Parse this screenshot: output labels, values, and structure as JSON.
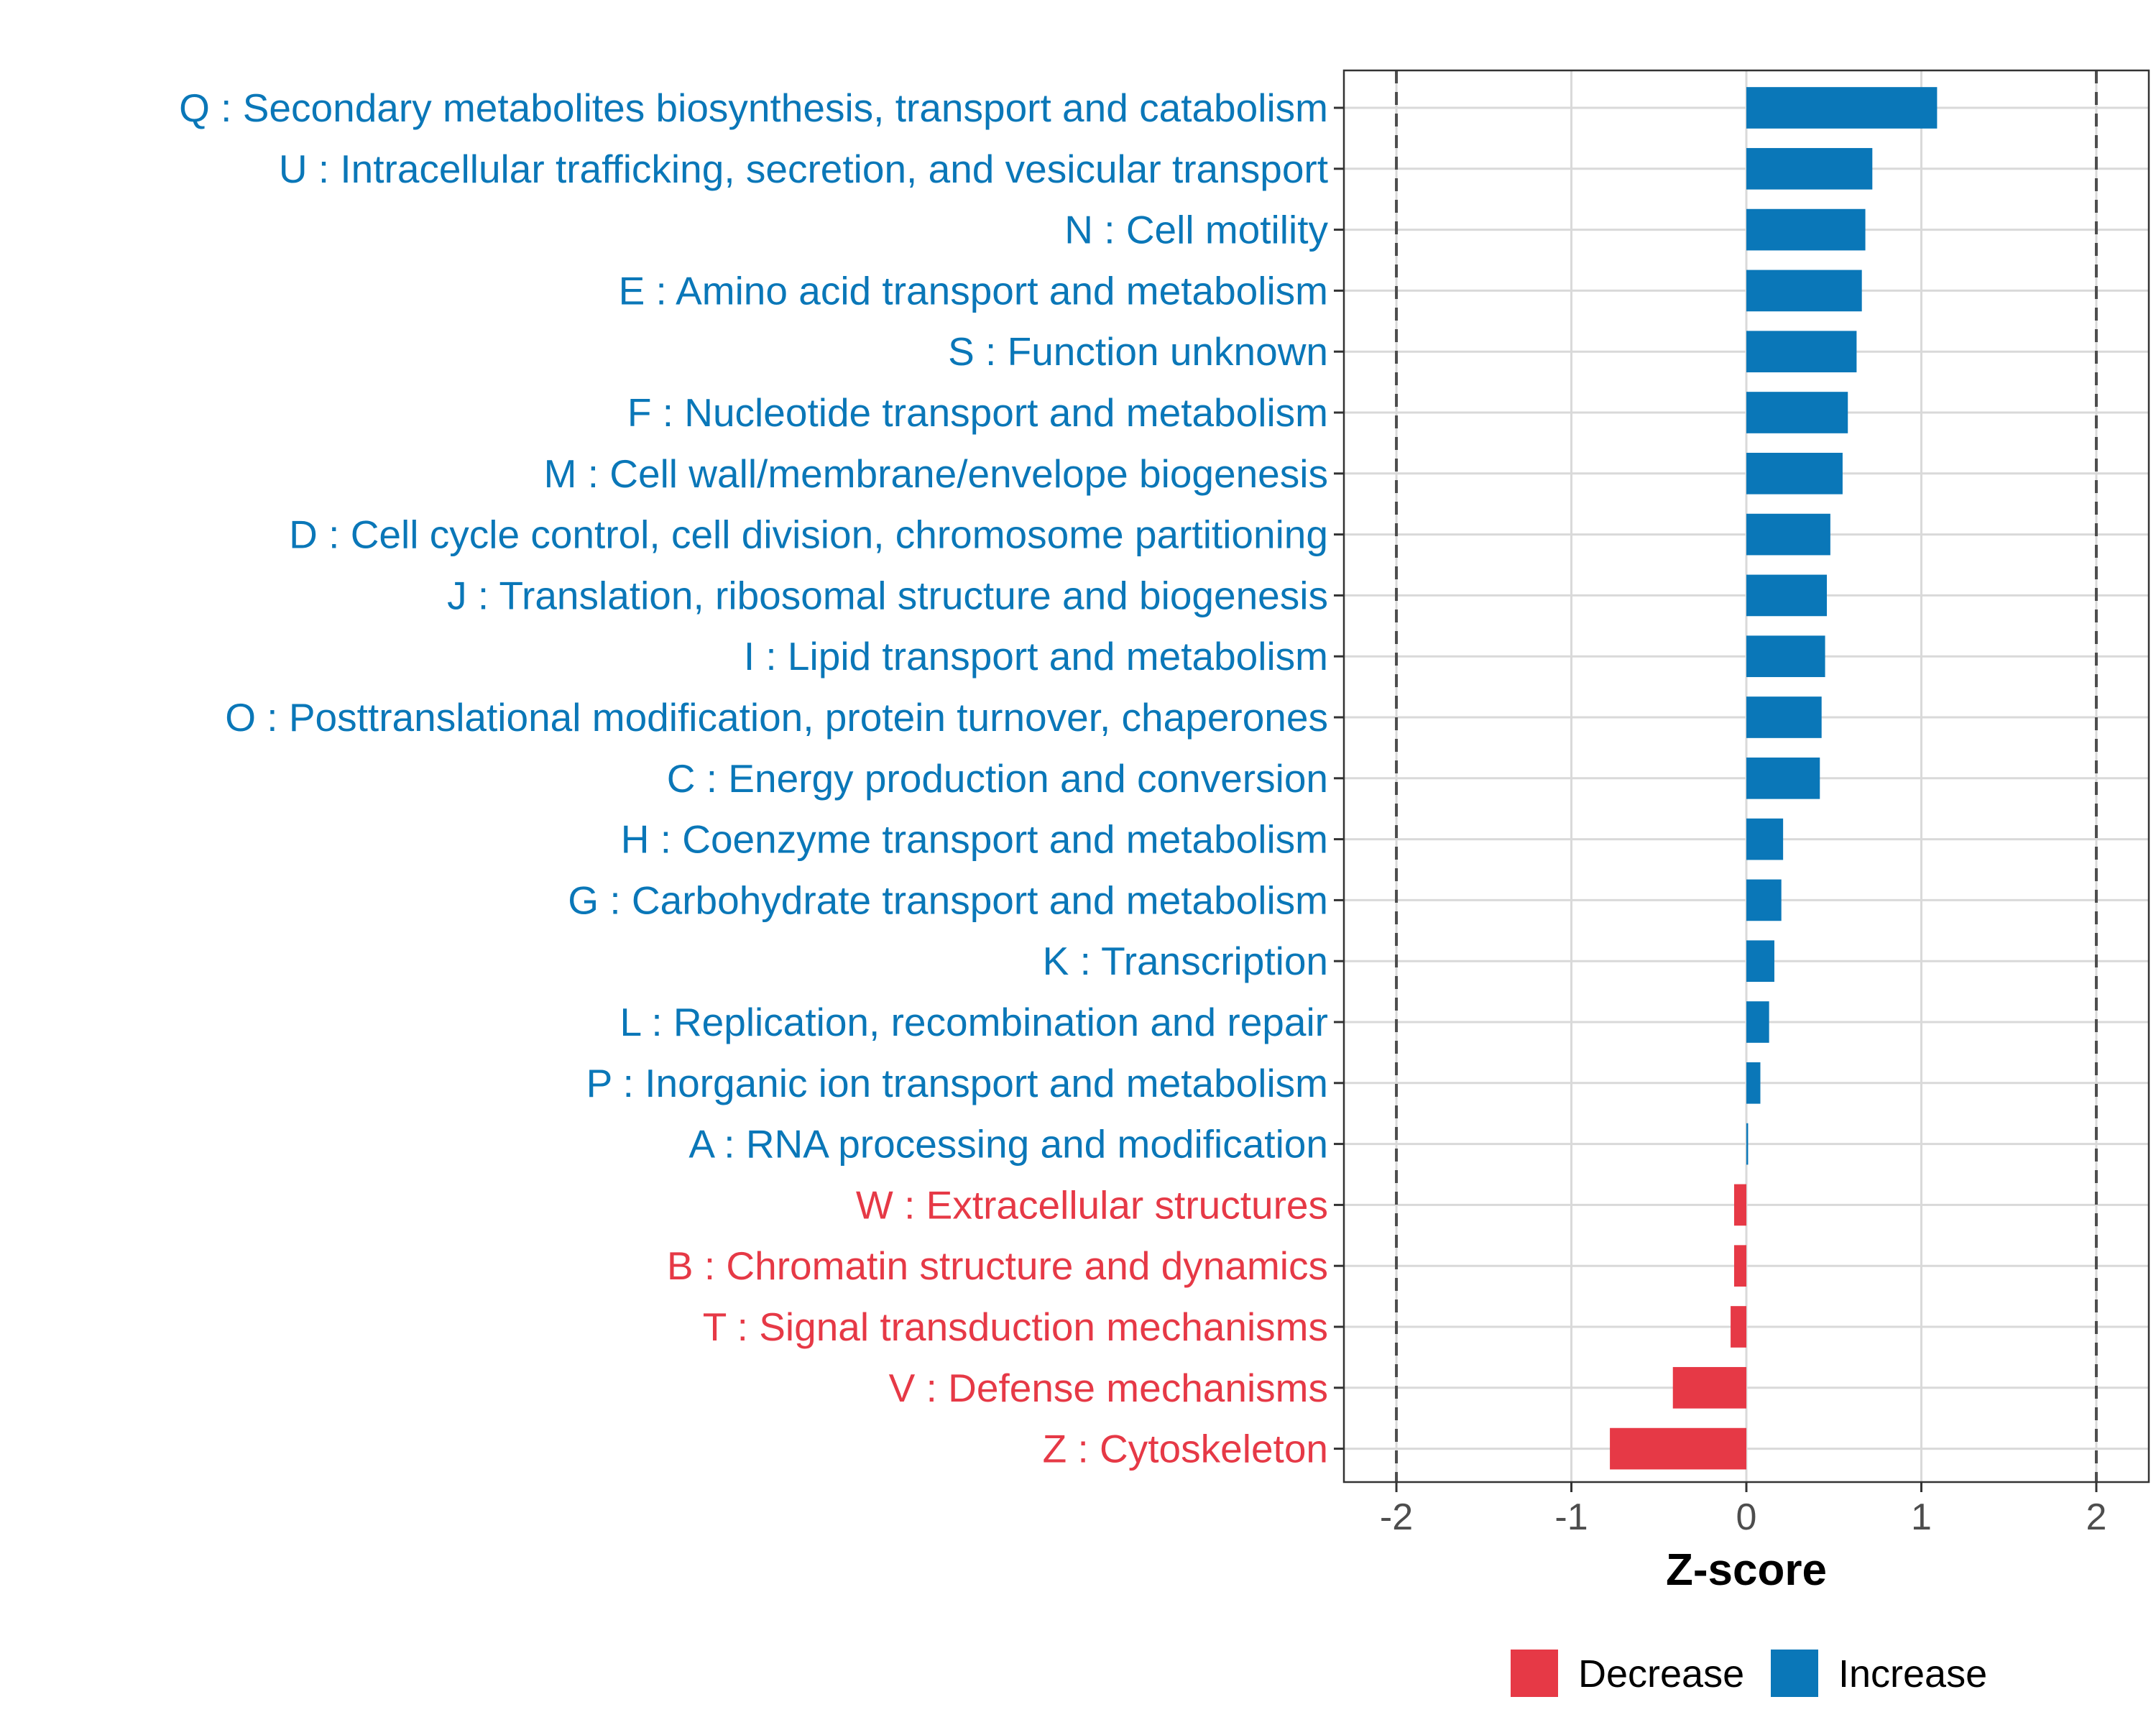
{
  "chart_data": {
    "type": "bar",
    "orientation": "horizontal",
    "categories": [
      "Q : Secondary metabolites biosynthesis, transport and catabolism",
      "U : Intracellular trafficking, secretion, and vesicular transport",
      "N : Cell motility",
      "E : Amino acid transport and metabolism",
      "S : Function unknown",
      "F : Nucleotide transport and metabolism",
      "M : Cell wall/membrane/envelope biogenesis",
      "D : Cell cycle control, cell division, chromosome partitioning",
      "J : Translation, ribosomal structure and biogenesis",
      "I : Lipid transport and metabolism",
      "O : Posttranslational modification, protein turnover, chaperones",
      "C : Energy production and conversion",
      "H : Coenzyme transport and metabolism",
      "G : Carbohydrate transport and metabolism",
      "K : Transcription",
      "L : Replication, recombination and repair",
      "P : Inorganic ion transport and metabolism",
      "A : RNA processing and modification",
      "W : Extracellular structures",
      "B : Chromatin structure and dynamics",
      "T : Signal transduction mechanisms",
      "V : Defense mechanisms",
      "Z : Cytoskeleton"
    ],
    "values": [
      1.09,
      0.72,
      0.68,
      0.66,
      0.63,
      0.58,
      0.55,
      0.48,
      0.46,
      0.45,
      0.43,
      0.42,
      0.21,
      0.2,
      0.16,
      0.13,
      0.08,
      0.01,
      -0.07,
      -0.07,
      -0.09,
      -0.42,
      -0.78
    ],
    "groups": [
      "Increase",
      "Increase",
      "Increase",
      "Increase",
      "Increase",
      "Increase",
      "Increase",
      "Increase",
      "Increase",
      "Increase",
      "Increase",
      "Increase",
      "Increase",
      "Increase",
      "Increase",
      "Increase",
      "Increase",
      "Increase",
      "Decrease",
      "Decrease",
      "Decrease",
      "Decrease",
      "Decrease"
    ],
    "xlabel": "Z-score",
    "ylabel": "",
    "xlim": [
      -2.3,
      2.3
    ],
    "xticks": [
      -2,
      -1,
      0,
      1,
      2
    ],
    "xtick_labels": [
      "-2",
      "-1",
      "0",
      "1",
      "2"
    ],
    "threshold_lines": [
      -2,
      2
    ],
    "colors": {
      "Decrease": "#e63946",
      "Increase": "#0a77b8"
    },
    "legend": {
      "position": "bottom",
      "entries": [
        {
          "key": "Decrease",
          "label": "Decrease"
        },
        {
          "key": "Increase",
          "label": "Increase"
        }
      ]
    },
    "grid": true
  }
}
